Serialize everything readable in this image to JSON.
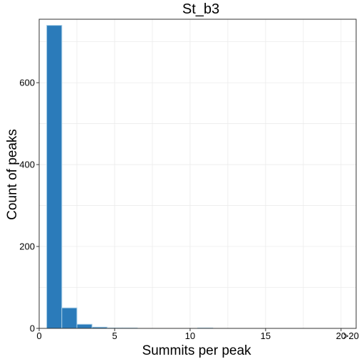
{
  "chart_data": {
    "type": "bar",
    "title": "St_b3",
    "xlabel": "Summits per peak",
    "ylabel": "Count of peaks",
    "categories": [
      "1",
      "2",
      "3",
      "4",
      "5",
      "6",
      "7",
      "8",
      "9",
      "10",
      "11",
      "12",
      "13",
      "14",
      "15",
      "16",
      "17",
      "18",
      "19",
      ">20"
    ],
    "values": [
      740,
      50,
      10,
      3,
      1,
      1,
      0,
      0,
      0,
      0,
      1,
      0,
      0,
      0,
      0,
      0,
      0,
      0,
      0,
      0
    ],
    "x_ticks": [
      "0",
      "5",
      "10",
      "15",
      "20",
      ">20"
    ],
    "x_tick_values": [
      0,
      5,
      10,
      15,
      20,
      20
    ],
    "y_ticks": [
      0,
      200,
      400,
      600
    ],
    "xlim": [
      0,
      21
    ],
    "ylim": [
      0,
      755
    ],
    "grid": true,
    "colors": {
      "bar_fill": "#2b7bba",
      "bar_stroke": "#a6cde6",
      "grid": "#ebebeb",
      "border": "#333333"
    }
  }
}
